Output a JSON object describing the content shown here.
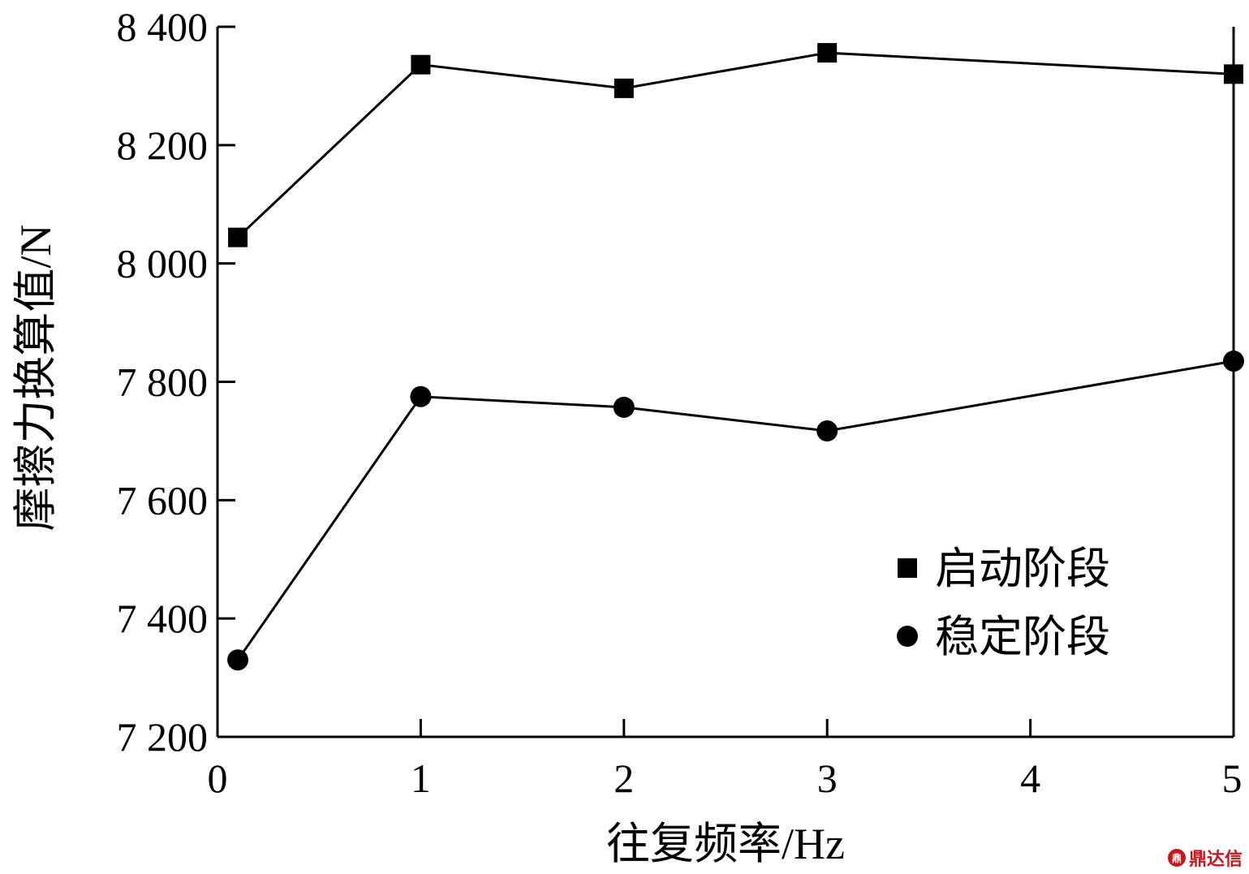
{
  "chart_data": {
    "type": "line",
    "xlabel": "往复频率/Hz",
    "ylabel": "摩擦力换算值/N",
    "xlim": [
      0,
      5
    ],
    "ylim": [
      7200,
      8400
    ],
    "xticks": [
      0,
      1,
      2,
      3,
      4,
      5
    ],
    "xtick_labels": [
      "0",
      "1",
      "2",
      "3",
      "4",
      "5"
    ],
    "yticks": [
      7200,
      7400,
      7600,
      7800,
      8000,
      8200,
      8400
    ],
    "ytick_labels": [
      "7 200",
      "7 400",
      "7 600",
      "7 800",
      "8 000",
      "8 200",
      "8 400"
    ],
    "grid": false,
    "legend_position": "lower-right",
    "series": [
      {
        "name": "启动阶段",
        "marker": "square",
        "color": "#000000",
        "x": [
          0.1,
          1,
          2,
          3,
          5
        ],
        "y": [
          8044,
          8336,
          8296,
          8356,
          8320
        ]
      },
      {
        "name": "稳定阶段",
        "marker": "circle",
        "color": "#000000",
        "x": [
          0.1,
          1,
          2,
          3,
          5
        ],
        "y": [
          7330,
          7775,
          7757,
          7717,
          7835
        ]
      }
    ]
  },
  "watermark": {
    "logo_text": "鼎",
    "text": "鼎达信"
  }
}
